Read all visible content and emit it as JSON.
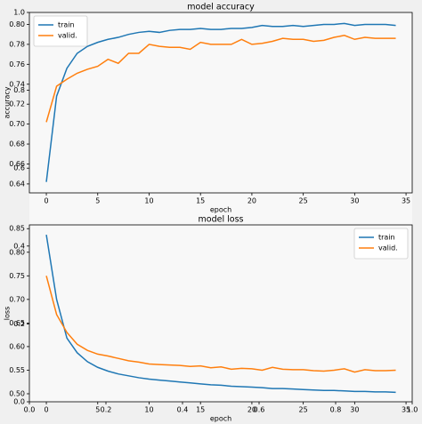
{
  "chart_data": [
    {
      "type": "line",
      "title": "model accuracy",
      "xlabel": "epoch",
      "ylabel": "accuracy",
      "xlim": [
        -1.65,
        35.6
      ],
      "ylim": [
        0.631,
        0.812
      ],
      "xticks": [
        0,
        5,
        10,
        15,
        20,
        25,
        30,
        35
      ],
      "yticks": [
        0.64,
        0.66,
        0.68,
        {
          "value": 0.7,
          "label": "0.70"
        },
        0.72,
        0.74,
        0.76,
        0.78,
        {
          "value": 0.8,
          "label": "0.80"
        }
      ],
      "legend": "upper left",
      "series": [
        {
          "name": "train",
          "color": "#1f77b4",
          "values": [
            0.642,
            0.728,
            0.756,
            0.771,
            0.778,
            0.782,
            0.785,
            0.787,
            0.79,
            0.792,
            0.793,
            0.792,
            0.794,
            0.795,
            0.795,
            0.796,
            0.795,
            0.795,
            0.796,
            0.796,
            0.797,
            0.799,
            0.798,
            0.798,
            0.799,
            0.798,
            0.799,
            0.8,
            0.8,
            0.801,
            0.799,
            0.8,
            0.8,
            0.8,
            0.799
          ]
        },
        {
          "name": "valid.",
          "color": "#ff7f0e",
          "values": [
            0.702,
            0.738,
            0.745,
            0.751,
            0.755,
            0.758,
            0.765,
            0.761,
            0.771,
            0.771,
            0.78,
            0.778,
            0.777,
            0.777,
            0.775,
            0.782,
            0.78,
            0.78,
            0.78,
            0.785,
            0.78,
            0.781,
            0.783,
            0.786,
            0.785,
            0.785,
            0.783,
            0.784,
            0.787,
            0.789,
            0.785,
            0.787,
            0.786,
            0.786,
            0.786
          ]
        }
      ]
    },
    {
      "type": "line",
      "title": "model loss",
      "xlabel": "epoch",
      "ylabel": "loss",
      "xlim": [
        -1.65,
        35.6
      ],
      "ylim": [
        0.483,
        0.858
      ],
      "xticks": [
        0,
        5,
        10,
        15,
        20,
        25,
        30,
        35
      ],
      "yticks": [
        {
          "value": 0.5,
          "label": "0.50"
        },
        0.55,
        {
          "value": 0.6,
          "label": "0.60"
        },
        0.65,
        {
          "value": 0.7,
          "label": "0.70"
        },
        0.75,
        {
          "value": 0.8,
          "label": "0.80"
        },
        0.85
      ],
      "legend": "upper right",
      "series": [
        {
          "name": "train",
          "color": "#1f77b4",
          "values": [
            0.837,
            0.7,
            0.618,
            0.587,
            0.568,
            0.556,
            0.548,
            0.542,
            0.538,
            0.534,
            0.531,
            0.529,
            0.527,
            0.525,
            0.523,
            0.521,
            0.519,
            0.518,
            0.516,
            0.515,
            0.514,
            0.513,
            0.511,
            0.511,
            0.51,
            0.509,
            0.508,
            0.507,
            0.507,
            0.506,
            0.505,
            0.505,
            0.504,
            0.504,
            0.503
          ]
        },
        {
          "name": "valid.",
          "color": "#ff7f0e",
          "values": [
            0.75,
            0.668,
            0.63,
            0.605,
            0.592,
            0.584,
            0.58,
            0.575,
            0.57,
            0.567,
            0.563,
            0.562,
            0.561,
            0.56,
            0.558,
            0.559,
            0.555,
            0.557,
            0.552,
            0.554,
            0.553,
            0.55,
            0.556,
            0.552,
            0.551,
            0.551,
            0.549,
            0.548,
            0.55,
            0.553,
            0.546,
            0.551,
            0.549,
            0.549,
            0.55
          ]
        }
      ]
    },
    {
      "type": "axes",
      "xlim": [
        0,
        1
      ],
      "ylim": [
        0,
        1
      ],
      "xticks": [
        {
          "value": 0,
          "label": "0.0"
        },
        0.2,
        0.4,
        0.6,
        0.8,
        {
          "value": 1,
          "label": "1.0"
        }
      ],
      "yticks": [
        {
          "value": 0,
          "label": "0.0"
        },
        0.2,
        0.4,
        0.6,
        0.8,
        {
          "value": 1,
          "label": "1.0"
        }
      ]
    }
  ]
}
